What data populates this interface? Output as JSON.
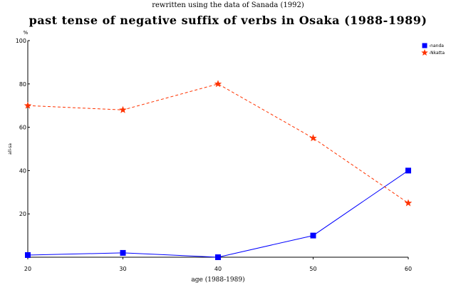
{
  "chart_data": {
    "type": "line",
    "title": "past tense of negative suffix of verbs in Osaka (1988-1989)",
    "subtitle": "rewritten using the data of Sanada (1992)",
    "xlabel": "age (1988-1989)",
    "ylabel": "all-sa",
    "yunit": "%",
    "x": [
      20,
      30,
      40,
      50,
      60
    ],
    "xlim": [
      20,
      60
    ],
    "ylim": [
      0,
      100
    ],
    "yticks": [
      100,
      80,
      60,
      40,
      20,
      0
    ],
    "grid": false,
    "legend_position": "top-right",
    "series": [
      {
        "name": "-nanda",
        "values": [
          1,
          2,
          0,
          10,
          40
        ],
        "color": "#0000ff",
        "marker": "square",
        "line_style": "solid"
      },
      {
        "name": "-Nkatta",
        "values": [
          70,
          68,
          80,
          55,
          25
        ],
        "color": "#ff3300",
        "marker": "star",
        "line_style": "dashed"
      }
    ]
  }
}
